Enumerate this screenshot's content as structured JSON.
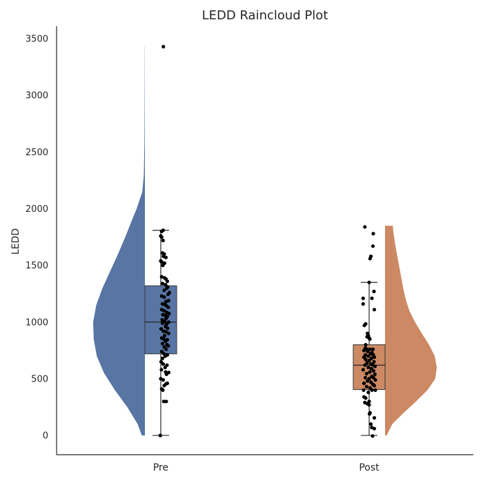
{
  "chart_data": {
    "type": "raincloud",
    "title": "LEDD Raincloud Plot",
    "xlabel": "",
    "ylabel": "LEDD",
    "ylim": [
      -170,
      3610
    ],
    "yticks": [
      0,
      500,
      1000,
      1500,
      2000,
      2500,
      3000,
      3500
    ],
    "grid": false,
    "categories": [
      "Pre",
      "Post"
    ],
    "colors": {
      "Pre": "#5875a4",
      "Post": "#cc8963",
      "points": "#000000",
      "axis": "#262626"
    },
    "groups": [
      {
        "name": "Pre",
        "cloud_side": "left",
        "box": {
          "whisker_low": 0,
          "q1": 720,
          "median": 1000,
          "q3": 1320,
          "whisker_high": 1810
        },
        "density": [
          [
            0,
            0.06
          ],
          [
            100,
            0.14
          ],
          [
            250,
            0.34
          ],
          [
            400,
            0.58
          ],
          [
            550,
            0.79
          ],
          [
            700,
            0.93
          ],
          [
            850,
            0.99
          ],
          [
            1000,
            1.0
          ],
          [
            1150,
            0.94
          ],
          [
            1300,
            0.82
          ],
          [
            1450,
            0.67
          ],
          [
            1600,
            0.52
          ],
          [
            1750,
            0.38
          ],
          [
            1900,
            0.25
          ],
          [
            2000,
            0.16
          ],
          [
            2150,
            0.05
          ],
          [
            2300,
            0.02
          ],
          [
            2600,
            0.01
          ],
          [
            3000,
            0.005
          ],
          [
            3430,
            0.002
          ]
        ],
        "points": [
          [
            0.15,
            3430
          ],
          [
            0.14,
            1810
          ],
          [
            0.05,
            1800
          ],
          [
            0.0,
            1760
          ],
          [
            0.05,
            1750
          ],
          [
            0.13,
            1720
          ],
          [
            0.1,
            1610
          ],
          [
            0.2,
            1600
          ],
          [
            0.15,
            1580
          ],
          [
            0.3,
            1570
          ],
          [
            0.0,
            1540
          ],
          [
            0.05,
            1530
          ],
          [
            0.22,
            1520
          ],
          [
            0.12,
            1500
          ],
          [
            0.05,
            1400
          ],
          [
            0.22,
            1390
          ],
          [
            0.3,
            1380
          ],
          [
            0.38,
            1360
          ],
          [
            0.1,
            1340
          ],
          [
            0.28,
            1330
          ],
          [
            0.4,
            1310
          ],
          [
            0.35,
            1300
          ],
          [
            0.2,
            1280
          ],
          [
            0.5,
            1260
          ],
          [
            0.42,
            1245
          ],
          [
            0.05,
            1230
          ],
          [
            0.2,
            1220
          ],
          [
            0.45,
            1190
          ],
          [
            0.3,
            1180
          ],
          [
            0.1,
            1160
          ],
          [
            0.24,
            1155
          ],
          [
            0.32,
            1145
          ],
          [
            0.44,
            1130
          ],
          [
            0.05,
            1110
          ],
          [
            0.2,
            1100
          ],
          [
            0.35,
            1085
          ],
          [
            0.48,
            1075
          ],
          [
            0.12,
            1065
          ],
          [
            0.26,
            1060
          ],
          [
            0.38,
            1050
          ],
          [
            0.3,
            1030
          ],
          [
            0.08,
            1020
          ],
          [
            0.22,
            1005
          ],
          [
            0.46,
            1000
          ],
          [
            0.1,
            990
          ],
          [
            0.33,
            980
          ],
          [
            0.27,
            960
          ],
          [
            0.4,
            945
          ],
          [
            0.02,
            940
          ],
          [
            0.15,
            920
          ],
          [
            0.3,
            915
          ],
          [
            0.45,
            900
          ],
          [
            0.22,
            880
          ],
          [
            0.05,
            860
          ],
          [
            0.17,
            850
          ],
          [
            0.38,
            845
          ],
          [
            0.28,
            830
          ],
          [
            0.1,
            810
          ],
          [
            0.36,
            800
          ],
          [
            0.44,
            790
          ],
          [
            0.2,
            780
          ],
          [
            0.31,
            760
          ],
          [
            0.06,
            740
          ],
          [
            0.18,
            720
          ],
          [
            0.38,
            710
          ],
          [
            0.26,
            700
          ],
          [
            0.1,
            680
          ],
          [
            0.02,
            650
          ],
          [
            0.14,
            630
          ],
          [
            0.36,
            620
          ],
          [
            0.25,
            600
          ],
          [
            0.04,
            580
          ],
          [
            0.28,
            560
          ],
          [
            0.46,
            555
          ],
          [
            0.33,
            540
          ],
          [
            0.0,
            500
          ],
          [
            0.14,
            490
          ],
          [
            0.38,
            460
          ],
          [
            0.3,
            455
          ],
          [
            0.2,
            440
          ],
          [
            0.05,
            410
          ],
          [
            0.12,
            400
          ],
          [
            0.17,
            300
          ],
          [
            0.32,
            300
          ],
          [
            -0.03,
            0
          ]
        ]
      },
      {
        "name": "Post",
        "cloud_side": "right",
        "box": {
          "whisker_low": 0,
          "q1": 405,
          "median": 620,
          "q3": 800,
          "whisker_high": 1350
        },
        "density": [
          [
            0,
            0.03
          ],
          [
            100,
            0.14
          ],
          [
            200,
            0.36
          ],
          [
            300,
            0.6
          ],
          [
            400,
            0.82
          ],
          [
            500,
            0.97
          ],
          [
            600,
            1.0
          ],
          [
            700,
            0.96
          ],
          [
            800,
            0.85
          ],
          [
            900,
            0.71
          ],
          [
            1000,
            0.58
          ],
          [
            1100,
            0.47
          ],
          [
            1200,
            0.4
          ],
          [
            1300,
            0.35
          ],
          [
            1400,
            0.31
          ],
          [
            1500,
            0.27
          ],
          [
            1600,
            0.23
          ],
          [
            1700,
            0.19
          ],
          [
            1800,
            0.16
          ],
          [
            1850,
            0.15
          ]
        ],
        "points": [
          [
            -0.25,
            1840
          ],
          [
            0.24,
            1780
          ],
          [
            0.22,
            1670
          ],
          [
            0.1,
            1580
          ],
          [
            0.05,
            1560
          ],
          [
            0.0,
            1350
          ],
          [
            0.28,
            1270
          ],
          [
            -0.35,
            1210
          ],
          [
            0.16,
            1210
          ],
          [
            -0.35,
            1160
          ],
          [
            0.3,
            1110
          ],
          [
            -0.2,
            985
          ],
          [
            -0.28,
            970
          ],
          [
            -0.1,
            900
          ],
          [
            -0.05,
            880
          ],
          [
            -0.12,
            870
          ],
          [
            0.0,
            860
          ],
          [
            0.04,
            850
          ],
          [
            -0.2,
            800
          ],
          [
            -0.22,
            770
          ],
          [
            -0.13,
            760
          ],
          [
            0.04,
            760
          ],
          [
            0.22,
            760
          ],
          [
            -0.3,
            750
          ],
          [
            -0.08,
            740
          ],
          [
            0.16,
            730
          ],
          [
            0.08,
            720
          ],
          [
            -0.22,
            710
          ],
          [
            0.24,
            710
          ],
          [
            -0.05,
            700
          ],
          [
            -0.3,
            690
          ],
          [
            0.3,
            690
          ],
          [
            0.13,
            680
          ],
          [
            -0.2,
            670
          ],
          [
            0.0,
            660
          ],
          [
            0.28,
            650
          ],
          [
            -0.12,
            640
          ],
          [
            0.1,
            630
          ],
          [
            0.2,
            625
          ],
          [
            -0.25,
            620
          ],
          [
            0.34,
            610
          ],
          [
            -0.05,
            600
          ],
          [
            0.13,
            590
          ],
          [
            -0.35,
            580
          ],
          [
            0.25,
            570
          ],
          [
            0.04,
            560
          ],
          [
            -0.15,
            545
          ],
          [
            0.33,
            540
          ],
          [
            0.15,
            520
          ],
          [
            -0.22,
            510
          ],
          [
            0.25,
            510
          ],
          [
            0.0,
            500
          ],
          [
            0.36,
            490
          ],
          [
            -0.1,
            480
          ],
          [
            0.1,
            470
          ],
          [
            -0.3,
            460
          ],
          [
            0.22,
            450
          ],
          [
            0.3,
            440
          ],
          [
            -0.15,
            430
          ],
          [
            0.05,
            420
          ],
          [
            -0.32,
            400
          ],
          [
            0.16,
            400
          ],
          [
            0.36,
            400
          ],
          [
            -0.05,
            380
          ],
          [
            -0.3,
            340
          ],
          [
            -0.2,
            330
          ],
          [
            0.0,
            300
          ],
          [
            -0.25,
            290
          ],
          [
            -0.1,
            280
          ],
          [
            0.0,
            270
          ],
          [
            0.05,
            200
          ],
          [
            0.02,
            190
          ],
          [
            0.3,
            155
          ],
          [
            0.1,
            100
          ],
          [
            0.15,
            70
          ],
          [
            0.3,
            60
          ],
          [
            0.2,
            -5
          ]
        ]
      }
    ]
  }
}
